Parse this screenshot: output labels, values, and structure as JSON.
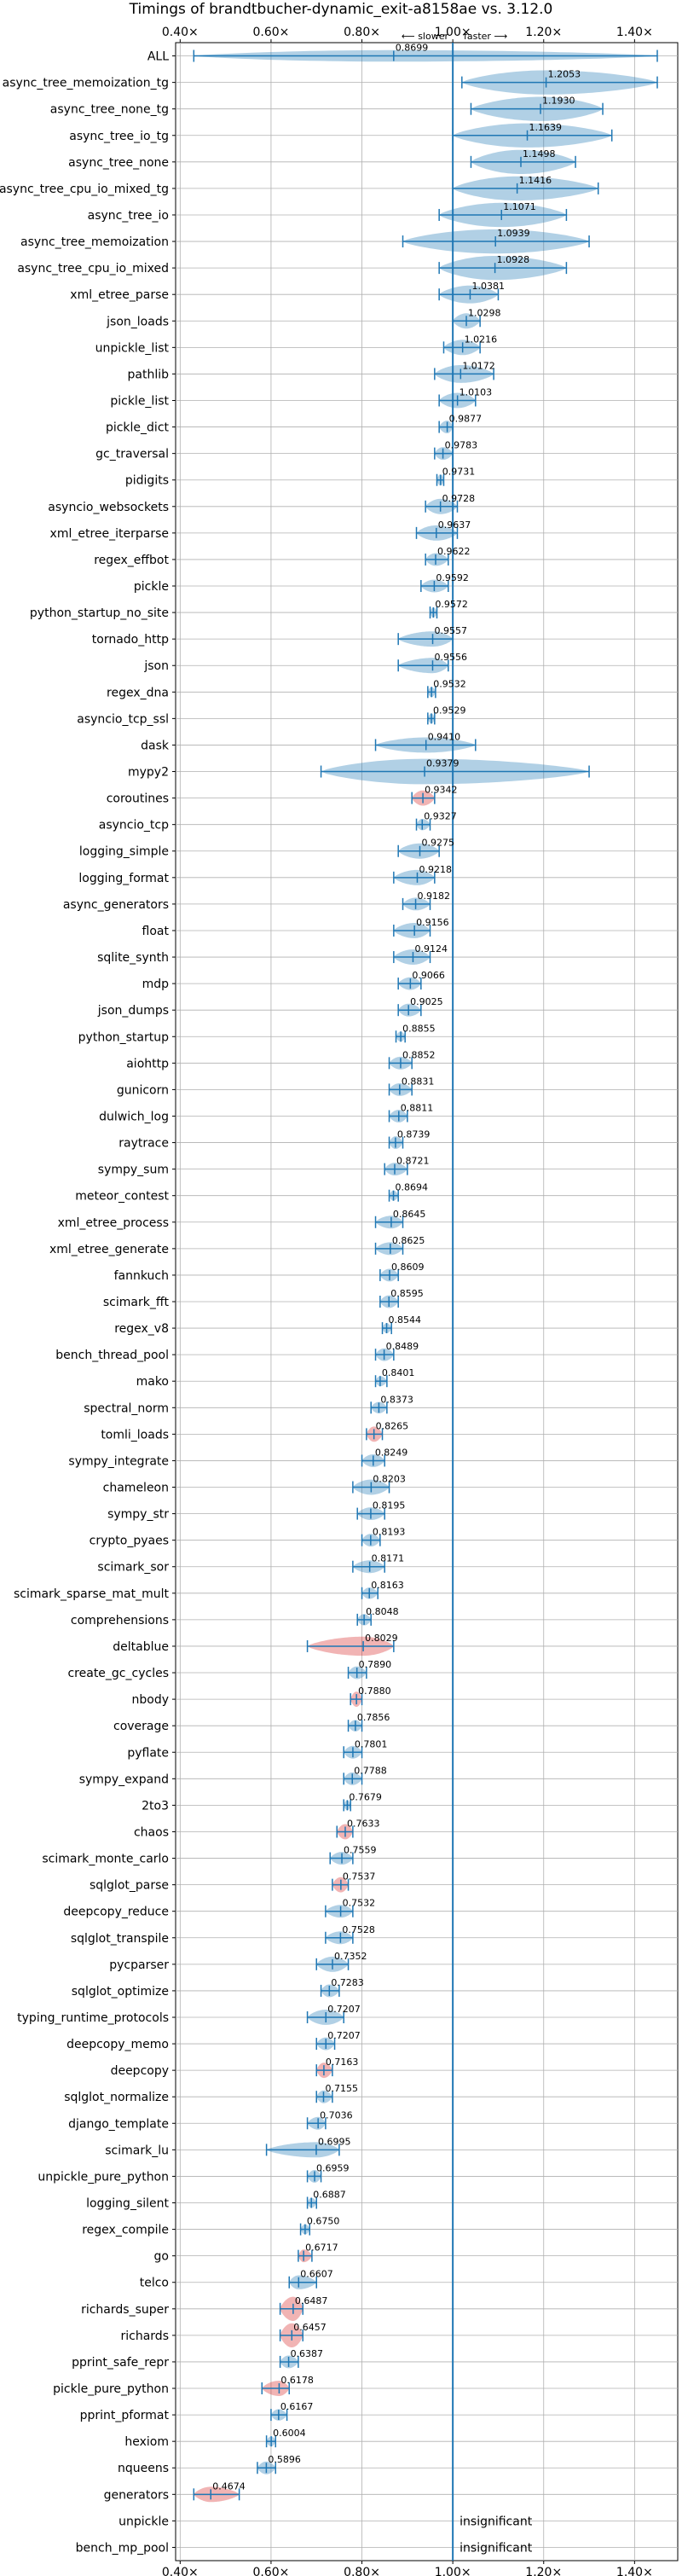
{
  "chart_data": {
    "type": "violin",
    "title": "Timings of brandtbucher-dynamic_exit-a8158ae vs. 3.12.0",
    "direction_left": "⟵ slower",
    "direction_right": "faster ⟶",
    "reference_x": 1.0,
    "xlim": [
      0.39,
      1.495
    ],
    "xticks": [
      0.4,
      0.6,
      0.8,
      1.0,
      1.2,
      1.4
    ],
    "xtick_labels": [
      "0.40×",
      "0.60×",
      "0.80×",
      "1.00×",
      "1.20×",
      "1.40×"
    ],
    "grid": true,
    "colors": {
      "normal": "#1f77b4",
      "slow": "#d62728",
      "zero": "#1f77b4"
    },
    "benchmarks": [
      {
        "name": "ALL",
        "label": "0.8699",
        "mean": 0.8699,
        "lo": 0.43,
        "hi": 1.45,
        "width": 0.45,
        "color": "normal"
      },
      {
        "name": "async_tree_memoization_tg",
        "label": "1.2053",
        "mean": 1.2053,
        "lo": 1.02,
        "hi": 1.45,
        "width": 0.95,
        "color": "normal"
      },
      {
        "name": "async_tree_none_tg",
        "label": "1.1930",
        "mean": 1.193,
        "lo": 1.04,
        "hi": 1.33,
        "width": 0.95,
        "color": "normal"
      },
      {
        "name": "async_tree_io_tg",
        "label": "1.1639",
        "mean": 1.1639,
        "lo": 1.0,
        "hi": 1.35,
        "width": 0.95,
        "color": "normal"
      },
      {
        "name": "async_tree_none",
        "label": "1.1498",
        "mean": 1.1498,
        "lo": 1.04,
        "hi": 1.27,
        "width": 0.95,
        "color": "normal"
      },
      {
        "name": "async_tree_cpu_io_mixed_tg",
        "label": "1.1416",
        "mean": 1.1416,
        "lo": 1.0,
        "hi": 1.32,
        "width": 0.95,
        "color": "normal"
      },
      {
        "name": "async_tree_io",
        "label": "1.1071",
        "mean": 1.1071,
        "lo": 0.97,
        "hi": 1.25,
        "width": 0.95,
        "color": "normal"
      },
      {
        "name": "async_tree_memoization",
        "label": "1.0939",
        "mean": 1.0939,
        "lo": 0.89,
        "hi": 1.3,
        "width": 0.95,
        "color": "normal"
      },
      {
        "name": "async_tree_cpu_io_mixed",
        "label": "1.0928",
        "mean": 1.0928,
        "lo": 0.97,
        "hi": 1.25,
        "width": 0.95,
        "color": "normal"
      },
      {
        "name": "xml_etree_parse",
        "label": "1.0381",
        "mean": 1.0381,
        "lo": 0.97,
        "hi": 1.1,
        "width": 0.7,
        "color": "normal"
      },
      {
        "name": "json_loads",
        "label": "1.0298",
        "mean": 1.0298,
        "lo": 1.0,
        "hi": 1.06,
        "width": 0.6,
        "color": "normal"
      },
      {
        "name": "unpickle_list",
        "label": "1.0216",
        "mean": 1.0216,
        "lo": 0.98,
        "hi": 1.06,
        "width": 0.6,
        "color": "normal"
      },
      {
        "name": "pathlib",
        "label": "1.0172",
        "mean": 1.0172,
        "lo": 0.96,
        "hi": 1.09,
        "width": 0.7,
        "color": "normal"
      },
      {
        "name": "pickle_list",
        "label": "1.0103",
        "mean": 1.0103,
        "lo": 0.97,
        "hi": 1.05,
        "width": 0.6,
        "color": "normal"
      },
      {
        "name": "pickle_dict",
        "label": "0.9877",
        "mean": 0.9877,
        "lo": 0.97,
        "hi": 1.0,
        "width": 0.5,
        "color": "normal"
      },
      {
        "name": "gc_traversal",
        "label": "0.9783",
        "mean": 0.9783,
        "lo": 0.96,
        "hi": 1.0,
        "width": 0.5,
        "color": "normal"
      },
      {
        "name": "pidigits",
        "label": "0.9731",
        "mean": 0.9731,
        "lo": 0.965,
        "hi": 0.98,
        "width": 0.45,
        "color": "normal"
      },
      {
        "name": "asyncio_websockets",
        "label": "0.9728",
        "mean": 0.9728,
        "lo": 0.94,
        "hi": 1.01,
        "width": 0.6,
        "color": "normal"
      },
      {
        "name": "xml_etree_iterparse",
        "label": "0.9637",
        "mean": 0.9637,
        "lo": 0.92,
        "hi": 1.01,
        "width": 0.6,
        "color": "normal"
      },
      {
        "name": "regex_effbot",
        "label": "0.9622",
        "mean": 0.9622,
        "lo": 0.94,
        "hi": 0.99,
        "width": 0.5,
        "color": "normal"
      },
      {
        "name": "pickle",
        "label": "0.9592",
        "mean": 0.9592,
        "lo": 0.93,
        "hi": 0.99,
        "width": 0.5,
        "color": "normal"
      },
      {
        "name": "python_startup_no_site",
        "label": "0.9572",
        "mean": 0.9572,
        "lo": 0.95,
        "hi": 0.965,
        "width": 0.4,
        "color": "normal"
      },
      {
        "name": "tornado_http",
        "label": "0.9557",
        "mean": 0.9557,
        "lo": 0.88,
        "hi": 1.0,
        "width": 0.6,
        "color": "normal"
      },
      {
        "name": "json",
        "label": "0.9556",
        "mean": 0.9556,
        "lo": 0.88,
        "hi": 0.99,
        "width": 0.6,
        "color": "normal"
      },
      {
        "name": "regex_dna",
        "label": "0.9532",
        "mean": 0.9532,
        "lo": 0.945,
        "hi": 0.962,
        "width": 0.4,
        "color": "normal"
      },
      {
        "name": "asyncio_tcp_ssl",
        "label": "0.9529",
        "mean": 0.9529,
        "lo": 0.945,
        "hi": 0.96,
        "width": 0.4,
        "color": "normal"
      },
      {
        "name": "dask",
        "label": "0.9410",
        "mean": 0.941,
        "lo": 0.83,
        "hi": 1.05,
        "width": 0.6,
        "color": "normal"
      },
      {
        "name": "mypy2",
        "label": "0.9379",
        "mean": 0.9379,
        "lo": 0.71,
        "hi": 1.3,
        "width": 1.0,
        "color": "normal"
      },
      {
        "name": "coroutines",
        "label": "0.9342",
        "mean": 0.9342,
        "lo": 0.91,
        "hi": 0.96,
        "width": 0.6,
        "color": "slow"
      },
      {
        "name": "asyncio_tcp",
        "label": "0.9327",
        "mean": 0.9327,
        "lo": 0.92,
        "hi": 0.95,
        "width": 0.45,
        "color": "normal"
      },
      {
        "name": "logging_simple",
        "label": "0.9275",
        "mean": 0.9275,
        "lo": 0.88,
        "hi": 0.97,
        "width": 0.6,
        "color": "normal"
      },
      {
        "name": "logging_format",
        "label": "0.9218",
        "mean": 0.9218,
        "lo": 0.87,
        "hi": 0.96,
        "width": 0.6,
        "color": "normal"
      },
      {
        "name": "async_generators",
        "label": "0.9182",
        "mean": 0.9182,
        "lo": 0.89,
        "hi": 0.95,
        "width": 0.5,
        "color": "normal"
      },
      {
        "name": "float",
        "label": "0.9156",
        "mean": 0.9156,
        "lo": 0.87,
        "hi": 0.95,
        "width": 0.6,
        "color": "normal"
      },
      {
        "name": "sqlite_synth",
        "label": "0.9124",
        "mean": 0.9124,
        "lo": 0.87,
        "hi": 0.95,
        "width": 0.6,
        "color": "normal"
      },
      {
        "name": "mdp",
        "label": "0.9066",
        "mean": 0.9066,
        "lo": 0.88,
        "hi": 0.93,
        "width": 0.5,
        "color": "normal"
      },
      {
        "name": "json_dumps",
        "label": "0.9025",
        "mean": 0.9025,
        "lo": 0.88,
        "hi": 0.93,
        "width": 0.5,
        "color": "normal"
      },
      {
        "name": "python_startup",
        "label": "0.8855",
        "mean": 0.8855,
        "lo": 0.875,
        "hi": 0.895,
        "width": 0.4,
        "color": "normal"
      },
      {
        "name": "aiohttp",
        "label": "0.8852",
        "mean": 0.8852,
        "lo": 0.86,
        "hi": 0.91,
        "width": 0.5,
        "color": "normal"
      },
      {
        "name": "gunicorn",
        "label": "0.8831",
        "mean": 0.8831,
        "lo": 0.86,
        "hi": 0.91,
        "width": 0.5,
        "color": "normal"
      },
      {
        "name": "dulwich_log",
        "label": "0.8811",
        "mean": 0.8811,
        "lo": 0.86,
        "hi": 0.9,
        "width": 0.5,
        "color": "normal"
      },
      {
        "name": "raytrace",
        "label": "0.8739",
        "mean": 0.8739,
        "lo": 0.86,
        "hi": 0.89,
        "width": 0.5,
        "color": "normal"
      },
      {
        "name": "sympy_sum",
        "label": "0.8721",
        "mean": 0.8721,
        "lo": 0.85,
        "hi": 0.9,
        "width": 0.5,
        "color": "normal"
      },
      {
        "name": "meteor_contest",
        "label": "0.8694",
        "mean": 0.8694,
        "lo": 0.86,
        "hi": 0.88,
        "width": 0.4,
        "color": "normal"
      },
      {
        "name": "xml_etree_process",
        "label": "0.8645",
        "mean": 0.8645,
        "lo": 0.83,
        "hi": 0.89,
        "width": 0.5,
        "color": "normal"
      },
      {
        "name": "xml_etree_generate",
        "label": "0.8625",
        "mean": 0.8625,
        "lo": 0.83,
        "hi": 0.89,
        "width": 0.5,
        "color": "normal"
      },
      {
        "name": "fannkuch",
        "label": "0.8609",
        "mean": 0.8609,
        "lo": 0.84,
        "hi": 0.88,
        "width": 0.5,
        "color": "normal"
      },
      {
        "name": "scimark_fft",
        "label": "0.8595",
        "mean": 0.8595,
        "lo": 0.84,
        "hi": 0.88,
        "width": 0.5,
        "color": "normal"
      },
      {
        "name": "regex_v8",
        "label": "0.8544",
        "mean": 0.8544,
        "lo": 0.845,
        "hi": 0.865,
        "width": 0.4,
        "color": "normal"
      },
      {
        "name": "bench_thread_pool",
        "label": "0.8489",
        "mean": 0.8489,
        "lo": 0.83,
        "hi": 0.87,
        "width": 0.5,
        "color": "normal"
      },
      {
        "name": "mako",
        "label": "0.8401",
        "mean": 0.8401,
        "lo": 0.83,
        "hi": 0.855,
        "width": 0.4,
        "color": "normal"
      },
      {
        "name": "spectral_norm",
        "label": "0.8373",
        "mean": 0.8373,
        "lo": 0.82,
        "hi": 0.855,
        "width": 0.45,
        "color": "normal"
      },
      {
        "name": "tomli_loads",
        "label": "0.8265",
        "mean": 0.8265,
        "lo": 0.81,
        "hi": 0.845,
        "width": 0.6,
        "color": "slow"
      },
      {
        "name": "sympy_integrate",
        "label": "0.8249",
        "mean": 0.8249,
        "lo": 0.8,
        "hi": 0.85,
        "width": 0.5,
        "color": "normal"
      },
      {
        "name": "chameleon",
        "label": "0.8203",
        "mean": 0.8203,
        "lo": 0.78,
        "hi": 0.86,
        "width": 0.6,
        "color": "normal"
      },
      {
        "name": "sympy_str",
        "label": "0.8195",
        "mean": 0.8195,
        "lo": 0.79,
        "hi": 0.85,
        "width": 0.5,
        "color": "normal"
      },
      {
        "name": "crypto_pyaes",
        "label": "0.8193",
        "mean": 0.8193,
        "lo": 0.8,
        "hi": 0.84,
        "width": 0.5,
        "color": "normal"
      },
      {
        "name": "scimark_sor",
        "label": "0.8171",
        "mean": 0.8171,
        "lo": 0.78,
        "hi": 0.85,
        "width": 0.5,
        "color": "normal"
      },
      {
        "name": "scimark_sparse_mat_mult",
        "label": "0.8163",
        "mean": 0.8163,
        "lo": 0.8,
        "hi": 0.835,
        "width": 0.45,
        "color": "normal"
      },
      {
        "name": "comprehensions",
        "label": "0.8048",
        "mean": 0.8048,
        "lo": 0.79,
        "hi": 0.82,
        "width": 0.45,
        "color": "normal"
      },
      {
        "name": "deltablue",
        "label": "0.8029",
        "mean": 0.8029,
        "lo": 0.68,
        "hi": 0.87,
        "width": 0.75,
        "color": "slow"
      },
      {
        "name": "create_gc_cycles",
        "label": "0.7890",
        "mean": 0.789,
        "lo": 0.77,
        "hi": 0.81,
        "width": 0.5,
        "color": "normal"
      },
      {
        "name": "nbody",
        "label": "0.7880",
        "mean": 0.788,
        "lo": 0.775,
        "hi": 0.8,
        "width": 0.6,
        "color": "slow"
      },
      {
        "name": "coverage",
        "label": "0.7856",
        "mean": 0.7856,
        "lo": 0.77,
        "hi": 0.8,
        "width": 0.45,
        "color": "normal"
      },
      {
        "name": "pyflate",
        "label": "0.7801",
        "mean": 0.7801,
        "lo": 0.76,
        "hi": 0.8,
        "width": 0.5,
        "color": "normal"
      },
      {
        "name": "sympy_expand",
        "label": "0.7788",
        "mean": 0.7788,
        "lo": 0.76,
        "hi": 0.8,
        "width": 0.5,
        "color": "normal"
      },
      {
        "name": "2to3",
        "label": "0.7679",
        "mean": 0.7679,
        "lo": 0.76,
        "hi": 0.775,
        "width": 0.4,
        "color": "normal"
      },
      {
        "name": "chaos",
        "label": "0.7633",
        "mean": 0.7633,
        "lo": 0.745,
        "hi": 0.78,
        "width": 0.6,
        "color": "slow"
      },
      {
        "name": "scimark_monte_carlo",
        "label": "0.7559",
        "mean": 0.7559,
        "lo": 0.73,
        "hi": 0.78,
        "width": 0.5,
        "color": "normal"
      },
      {
        "name": "sqlglot_parse",
        "label": "0.7537",
        "mean": 0.7537,
        "lo": 0.735,
        "hi": 0.77,
        "width": 0.6,
        "color": "slow"
      },
      {
        "name": "deepcopy_reduce",
        "label": "0.7532",
        "mean": 0.7532,
        "lo": 0.72,
        "hi": 0.78,
        "width": 0.5,
        "color": "normal"
      },
      {
        "name": "sqlglot_transpile",
        "label": "0.7528",
        "mean": 0.7528,
        "lo": 0.72,
        "hi": 0.78,
        "width": 0.5,
        "color": "normal"
      },
      {
        "name": "pycparser",
        "label": "0.7352",
        "mean": 0.7352,
        "lo": 0.7,
        "hi": 0.77,
        "width": 0.6,
        "color": "normal"
      },
      {
        "name": "sqlglot_optimize",
        "label": "0.7283",
        "mean": 0.7283,
        "lo": 0.71,
        "hi": 0.75,
        "width": 0.5,
        "color": "normal"
      },
      {
        "name": "typing_runtime_protocols",
        "label": "0.7207",
        "mean": 0.7207,
        "lo": 0.68,
        "hi": 0.76,
        "width": 0.6,
        "color": "normal"
      },
      {
        "name": "deepcopy_memo",
        "label": "0.7207",
        "mean": 0.7207,
        "lo": 0.7,
        "hi": 0.74,
        "width": 0.5,
        "color": "normal"
      },
      {
        "name": "deepcopy",
        "label": "0.7163",
        "mean": 0.7163,
        "lo": 0.7,
        "hi": 0.735,
        "width": 0.6,
        "color": "slow"
      },
      {
        "name": "sqlglot_normalize",
        "label": "0.7155",
        "mean": 0.7155,
        "lo": 0.7,
        "hi": 0.735,
        "width": 0.5,
        "color": "normal"
      },
      {
        "name": "django_template",
        "label": "0.7036",
        "mean": 0.7036,
        "lo": 0.68,
        "hi": 0.72,
        "width": 0.5,
        "color": "normal"
      },
      {
        "name": "scimark_lu",
        "label": "0.6995",
        "mean": 0.6995,
        "lo": 0.59,
        "hi": 0.75,
        "width": 0.6,
        "color": "normal"
      },
      {
        "name": "unpickle_pure_python",
        "label": "0.6959",
        "mean": 0.6959,
        "lo": 0.68,
        "hi": 0.71,
        "width": 0.5,
        "color": "normal"
      },
      {
        "name": "logging_silent",
        "label": "0.6887",
        "mean": 0.6887,
        "lo": 0.68,
        "hi": 0.7,
        "width": 0.4,
        "color": "normal"
      },
      {
        "name": "regex_compile",
        "label": "0.6750",
        "mean": 0.675,
        "lo": 0.665,
        "hi": 0.685,
        "width": 0.4,
        "color": "normal"
      },
      {
        "name": "go",
        "label": "0.6717",
        "mean": 0.6717,
        "lo": 0.66,
        "hi": 0.69,
        "width": 0.5,
        "color": "slow"
      },
      {
        "name": "telco",
        "label": "0.6607",
        "mean": 0.6607,
        "lo": 0.64,
        "hi": 0.7,
        "width": 0.55,
        "color": "normal"
      },
      {
        "name": "richards_super",
        "label": "0.6487",
        "mean": 0.6487,
        "lo": 0.62,
        "hi": 0.67,
        "width": 0.95,
        "color": "slow"
      },
      {
        "name": "richards",
        "label": "0.6457",
        "mean": 0.6457,
        "lo": 0.62,
        "hi": 0.67,
        "width": 0.95,
        "color": "slow"
      },
      {
        "name": "pprint_safe_repr",
        "label": "0.6387",
        "mean": 0.6387,
        "lo": 0.62,
        "hi": 0.66,
        "width": 0.5,
        "color": "normal"
      },
      {
        "name": "pickle_pure_python",
        "label": "0.6178",
        "mean": 0.6178,
        "lo": 0.58,
        "hi": 0.64,
        "width": 0.6,
        "color": "slow"
      },
      {
        "name": "pprint_pformat",
        "label": "0.6167",
        "mean": 0.6167,
        "lo": 0.6,
        "hi": 0.635,
        "width": 0.45,
        "color": "normal"
      },
      {
        "name": "hexiom",
        "label": "0.6004",
        "mean": 0.6004,
        "lo": 0.59,
        "hi": 0.61,
        "width": 0.4,
        "color": "normal"
      },
      {
        "name": "nqueens",
        "label": "0.5896",
        "mean": 0.5896,
        "lo": 0.57,
        "hi": 0.61,
        "width": 0.5,
        "color": "normal"
      },
      {
        "name": "generators",
        "label": "0.4674",
        "mean": 0.4674,
        "lo": 0.43,
        "hi": 0.53,
        "width": 0.6,
        "color": "slow"
      },
      {
        "name": "unpickle",
        "label": "insignificant",
        "mean": null,
        "lo": null,
        "hi": null,
        "width": 0,
        "color": "normal"
      },
      {
        "name": "bench_mp_pool",
        "label": "insignificant",
        "mean": null,
        "lo": null,
        "hi": null,
        "width": 0,
        "color": "normal"
      }
    ]
  }
}
